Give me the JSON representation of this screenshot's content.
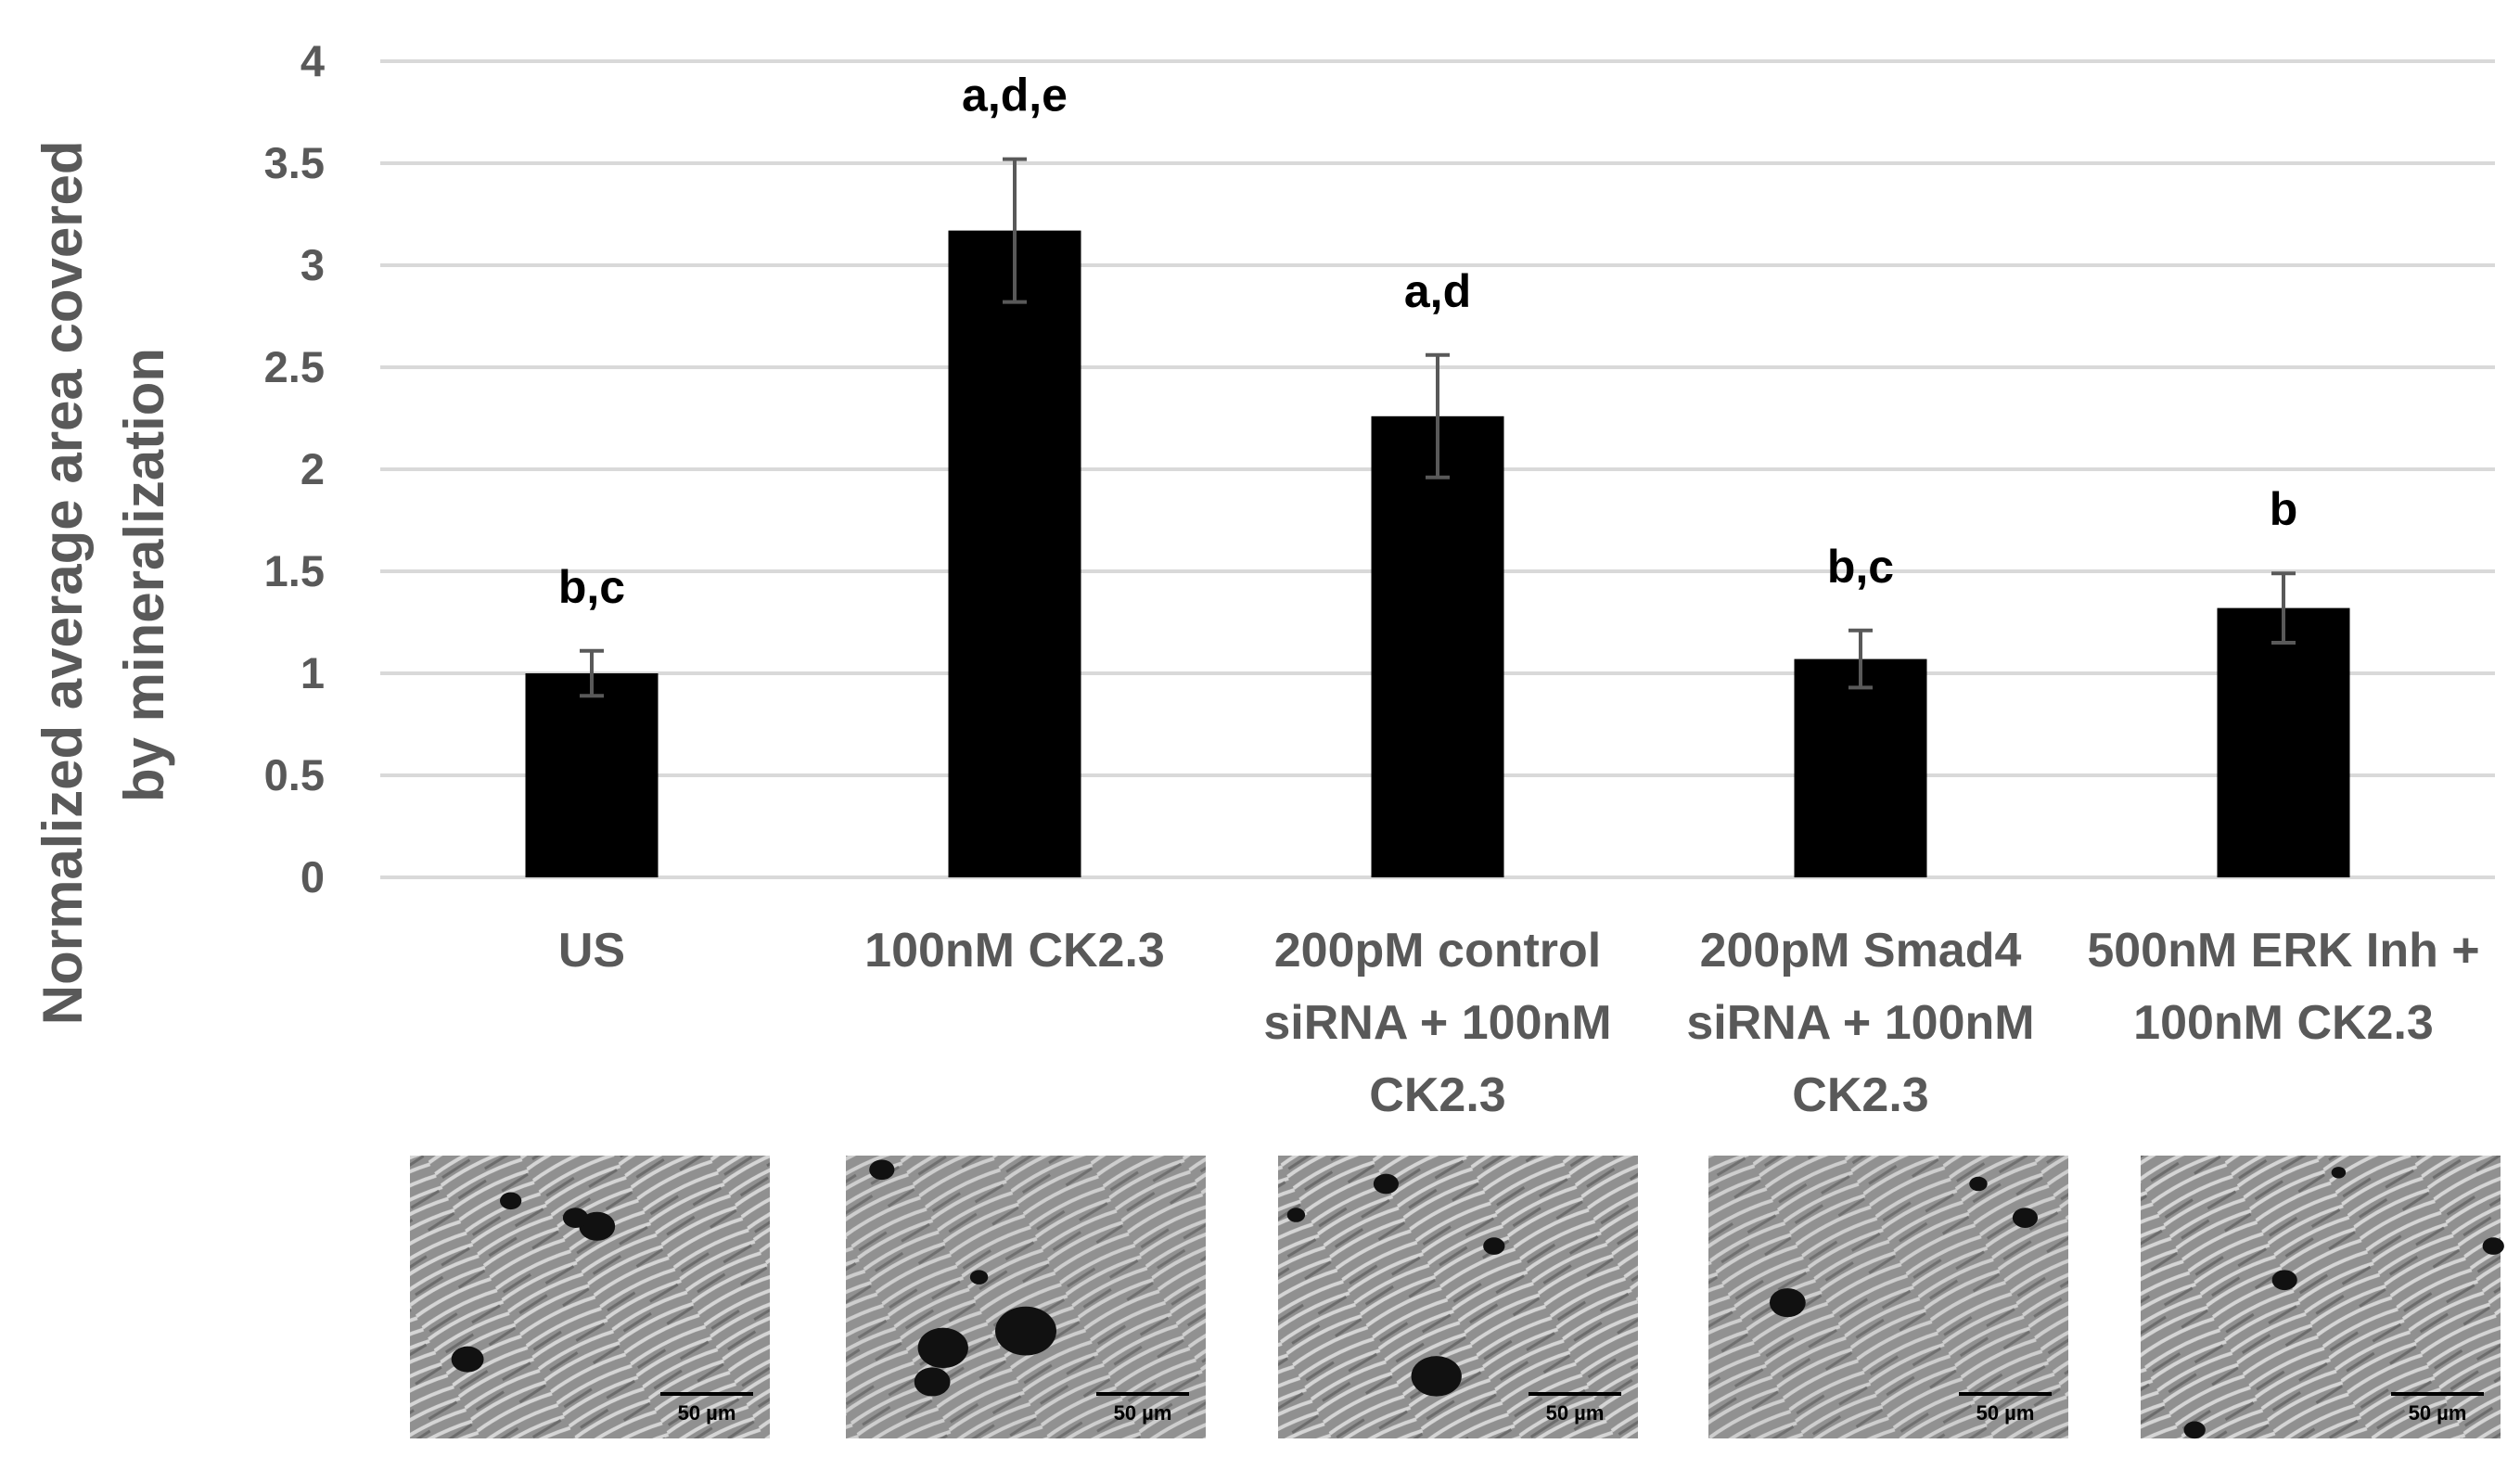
{
  "chart_data": {
    "type": "bar",
    "title": "",
    "ylabel": [
      "Normalized average area covered",
      "by mineralization"
    ],
    "xlabel": "",
    "ylim": [
      0,
      4
    ],
    "yticks": [
      "0",
      "0.5",
      "1",
      "1.5",
      "2",
      "2.5",
      "3",
      "3.5",
      "4"
    ],
    "grid": true,
    "categories": [
      [
        "US"
      ],
      [
        "100nM CK2.3"
      ],
      [
        "200pM control",
        "siRNA + 100nM",
        "CK2.3"
      ],
      [
        "200pM Smad4",
        "siRNA + 100nM",
        "CK2.3"
      ],
      [
        "500nM ERK Inh +",
        "100nM CK2.3"
      ]
    ],
    "values": [
      1.0,
      3.17,
      2.26,
      1.07,
      1.32
    ],
    "errors": [
      0.11,
      0.35,
      0.3,
      0.14,
      0.17
    ],
    "significance": [
      "b,c",
      "a,d,e",
      "a,d",
      "b,c",
      "b"
    ],
    "bar_color": "#000000",
    "error_color": "#595959",
    "grid_color": "#d9d9d9",
    "micrographs": {
      "scale_label": "50 µm",
      "dark_spots": [
        [
          [
            0.52,
            0.25,
            0.05
          ],
          [
            0.46,
            0.22,
            0.035
          ],
          [
            0.16,
            0.72,
            0.045
          ],
          [
            0.28,
            0.16,
            0.03
          ]
        ],
        [
          [
            0.5,
            0.62,
            0.085
          ],
          [
            0.27,
            0.68,
            0.07
          ],
          [
            0.24,
            0.8,
            0.05
          ],
          [
            0.1,
            0.05,
            0.035
          ],
          [
            0.37,
            0.43,
            0.025
          ]
        ],
        [
          [
            0.44,
            0.78,
            0.07
          ],
          [
            0.3,
            0.1,
            0.035
          ],
          [
            0.6,
            0.32,
            0.03
          ],
          [
            0.05,
            0.21,
            0.025
          ]
        ],
        [
          [
            0.22,
            0.52,
            0.05
          ],
          [
            0.88,
            0.22,
            0.035
          ],
          [
            0.75,
            0.1,
            0.025
          ]
        ],
        [
          [
            0.4,
            0.44,
            0.035
          ],
          [
            0.98,
            0.32,
            0.03
          ],
          [
            0.15,
            0.97,
            0.03
          ],
          [
            0.55,
            0.06,
            0.02
          ]
        ]
      ]
    }
  }
}
